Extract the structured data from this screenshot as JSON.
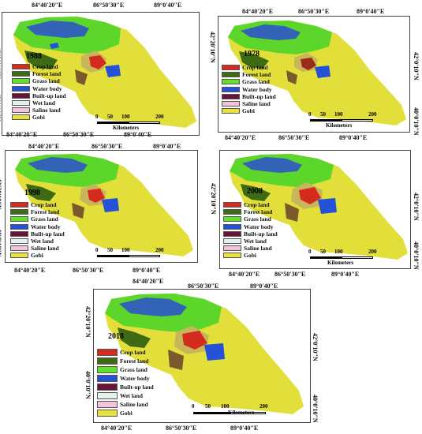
{
  "coords": {
    "lon": [
      "84°40′20″E",
      "86°50′30″E",
      "89°0′40″E"
    ],
    "lat": [
      "42°20′10″N",
      "42°0′10″N",
      "40°0′10″N"
    ]
  },
  "panels": [
    {
      "year": "1988"
    },
    {
      "year": "1978"
    },
    {
      "year": "1998"
    },
    {
      "year": "2008"
    },
    {
      "year": "2018"
    }
  ],
  "legend": [
    {
      "label": "Crop land",
      "color": "#d42b1e"
    },
    {
      "label": "Forest land",
      "color": "#3f6b12"
    },
    {
      "label": "Grass land",
      "color": "#63e02a"
    },
    {
      "label": "Water body",
      "color": "#2451d6"
    },
    {
      "label": "Built-up land",
      "color": "#6a1238"
    },
    {
      "label": "Wet land",
      "color": "#e6f0ec"
    },
    {
      "label": "Saline land",
      "color": "#f3c2dd"
    },
    {
      "label": "Gobi",
      "color": "#e8e23c"
    }
  ],
  "scale": {
    "ticks": [
      "0",
      "50",
      "100",
      "200"
    ],
    "unit": "Kilometers"
  }
}
